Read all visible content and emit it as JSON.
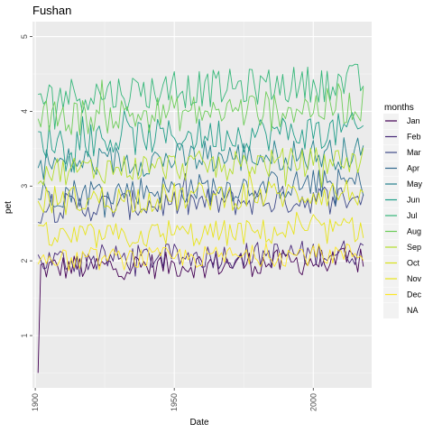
{
  "chart_data": {
    "type": "line",
    "title": "Fushan",
    "xlabel": "Date",
    "ylabel": "pet",
    "xlim": [
      1899,
      2021
    ],
    "ylim": [
      0.3,
      5.2
    ],
    "x_ticks": [
      1900,
      1950,
      2000
    ],
    "y_ticks": [
      1,
      2,
      3,
      4,
      5
    ],
    "x_tick_labels": [
      "1900",
      "1950",
      "2000"
    ],
    "y_tick_labels": [
      "1",
      "2",
      "3",
      "4",
      "5"
    ],
    "grid": true,
    "legend_title": "months",
    "legend_position": "right",
    "start_year": 1901,
    "end_year": 2018,
    "series": [
      {
        "name": "Jan",
        "color": "#440154",
        "mean": 1.9,
        "amp": 0.18,
        "trend": 0.1,
        "min": 0.5,
        "max": 2.3
      },
      {
        "name": "Feb",
        "color": "#482878",
        "mean": 2.0,
        "amp": 0.18,
        "trend": 0.12,
        "min": 1.4,
        "max": 2.5
      },
      {
        "name": "Mar",
        "color": "#3E4A89",
        "mean": 2.7,
        "amp": 0.2,
        "trend": 0.15,
        "min": 2.2,
        "max": 3.2
      },
      {
        "name": "Apr",
        "color": "#31688E",
        "mean": 2.9,
        "amp": 0.2,
        "trend": 0.15,
        "min": 2.3,
        "max": 3.5
      },
      {
        "name": "May",
        "color": "#26828E",
        "mean": 3.3,
        "amp": 0.22,
        "trend": 0.15,
        "min": 2.6,
        "max": 3.9
      },
      {
        "name": "Jun",
        "color": "#1F9E89",
        "mean": 3.6,
        "amp": 0.24,
        "trend": 0.15,
        "min": 3.0,
        "max": 4.4
      },
      {
        "name": "Jul",
        "color": "#35B779",
        "mean": 4.2,
        "amp": 0.25,
        "trend": 0.2,
        "min": 3.6,
        "max": 5.0
      },
      {
        "name": "Aug",
        "color": "#6DCD59",
        "mean": 3.9,
        "amp": 0.25,
        "trend": 0.18,
        "min": 3.3,
        "max": 4.7
      },
      {
        "name": "Sep",
        "color": "#B4DE2C",
        "mean": 3.2,
        "amp": 0.2,
        "trend": 0.15,
        "min": 2.6,
        "max": 3.8
      },
      {
        "name": "Oct",
        "color": "#D8E219",
        "mean": 2.8,
        "amp": 0.2,
        "trend": 0.12,
        "min": 2.3,
        "max": 3.3
      },
      {
        "name": "Nov",
        "color": "#E8E41A",
        "mean": 2.3,
        "amp": 0.18,
        "trend": 0.12,
        "min": 1.9,
        "max": 2.8
      },
      {
        "name": "Dec",
        "color": "#FDE725",
        "mean": 2.0,
        "amp": 0.15,
        "trend": 0.1,
        "min": 1.7,
        "max": 2.5
      },
      {
        "name": "NA",
        "color": "#E6E6E6",
        "mean": null,
        "amp": 0,
        "trend": 0,
        "min": null,
        "max": null
      }
    ]
  }
}
